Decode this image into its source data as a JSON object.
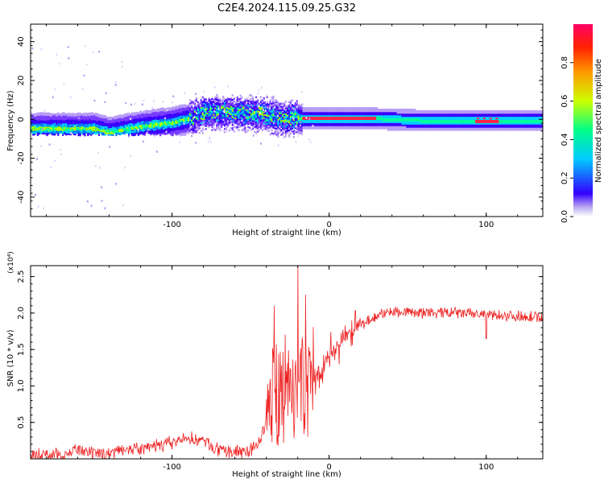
{
  "title": "C2E4.2024.115.09.25.G32",
  "chart_data": [
    {
      "type": "heatmap",
      "xlabel": "Height of straight line (km)",
      "ylabel": "Frequency (Hz)",
      "xlim": [
        -190,
        136
      ],
      "ylim": [
        -50,
        49
      ],
      "xticks": [
        -100,
        0,
        100
      ],
      "yticks": [
        -40,
        -20,
        0,
        20,
        40
      ],
      "colorbar": {
        "label": "Normalized spectral amplitude",
        "range": [
          0,
          1
        ],
        "ticks": [
          "0.0",
          "0.2",
          "0.4",
          "0.6",
          "0.8"
        ]
      },
      "ridge": {
        "x": [
          -190,
          -170,
          -150,
          -140,
          -120,
          -100,
          -90,
          -80,
          -70,
          -60,
          -50,
          -40,
          -30,
          -22,
          -18,
          0,
          30,
          60,
          100,
          136
        ],
        "y": [
          -5,
          -5,
          -5,
          -7,
          -4,
          -2,
          0,
          3,
          4,
          3,
          3,
          2,
          0,
          1,
          0,
          0,
          0,
          -1,
          -1,
          -1
        ]
      }
    },
    {
      "type": "line",
      "xlabel": "Height of straight line (km)",
      "ylabel": "SNR (10 * v/v)",
      "yunit": "(x10⁴)",
      "xlim": [
        -190,
        136
      ],
      "ylim": [
        0,
        2.65
      ],
      "xticks": [
        -100,
        0,
        100
      ],
      "yticks": [
        0.5,
        1.0,
        1.5,
        2.0,
        2.5
      ],
      "color": "#ee2222",
      "series": [
        {
          "x": [
            -190,
            -170,
            -160,
            -150,
            -140,
            -130,
            -120,
            -110,
            -100,
            -90,
            -80,
            -70,
            -60,
            -50,
            -45,
            -40,
            -35,
            -30,
            -25,
            -20,
            -15,
            -10,
            -5,
            0,
            5,
            10,
            15,
            20,
            25,
            30,
            35,
            40,
            50,
            60,
            70,
            80,
            90,
            100,
            110,
            120,
            130,
            136
          ],
          "y": [
            0.05,
            0.06,
            0.12,
            0.06,
            0.08,
            0.15,
            0.12,
            0.18,
            0.22,
            0.28,
            0.25,
            0.1,
            0.1,
            0.12,
            0.2,
            0.5,
            0.9,
            1.0,
            1.05,
            1.0,
            0.95,
            1.1,
            1.25,
            1.4,
            1.55,
            1.65,
            1.75,
            1.85,
            1.9,
            1.95,
            2.0,
            2.02,
            2.02,
            2.0,
            2.0,
            2.0,
            1.99,
            1.98,
            1.97,
            1.96,
            1.95,
            1.93
          ]
        }
      ],
      "spikes": [
        {
          "x": -35,
          "y": 2.1
        },
        {
          "x": -20,
          "y": 2.65
        },
        {
          "x": -15,
          "y": 2.25
        },
        {
          "x": 100,
          "y": 1.65
        }
      ]
    }
  ]
}
